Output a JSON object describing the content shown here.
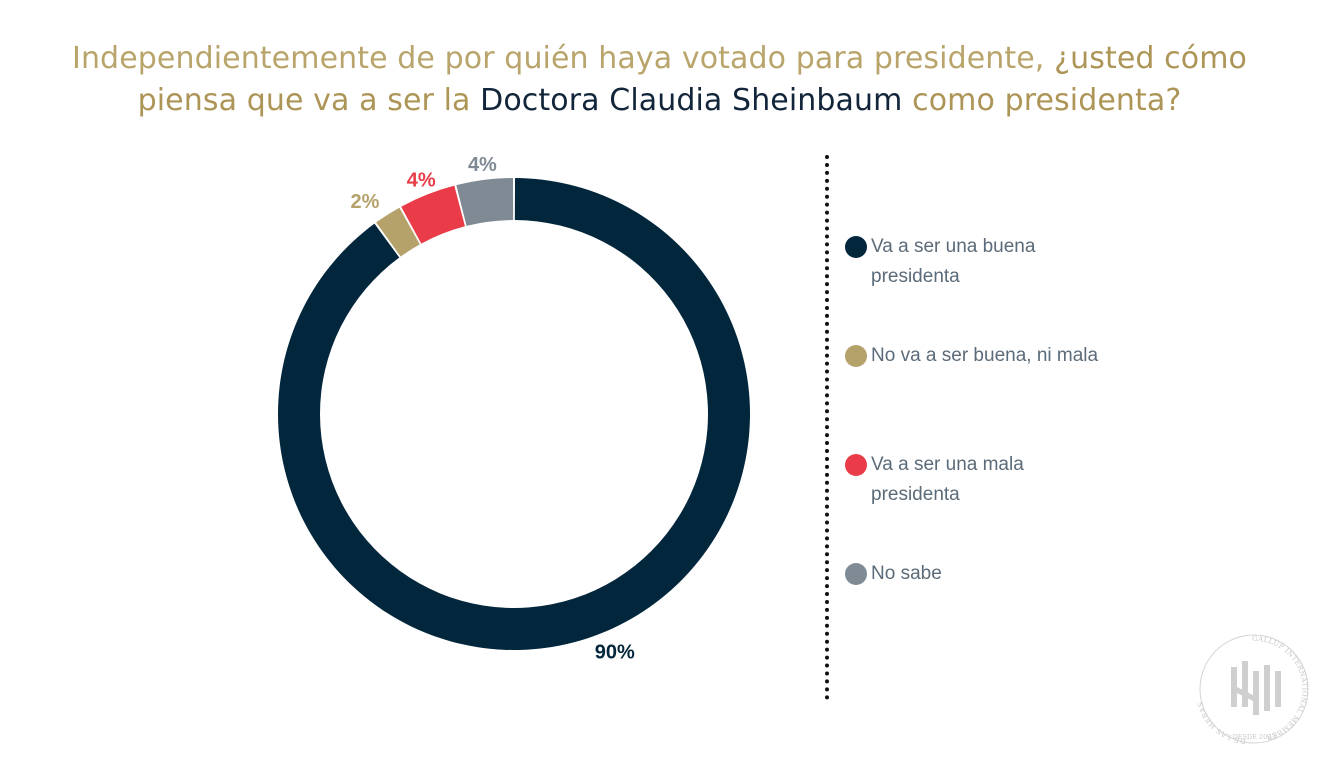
{
  "title": {
    "part1": "Independientemente de por quién haya votado para presidente, ",
    "part2": "¿usted cómo piensa que va a ser la ",
    "part3": "Doctora Claudia Sheinbaum",
    "part4": " como presidenta?"
  },
  "colors": {
    "buena": "#02273d",
    "ni_buena_ni_mala": "#b5a26a",
    "mala": "#ea3c48",
    "no_sabe": "#7f8a94"
  },
  "chart_data": {
    "type": "pie",
    "variant": "donut",
    "title": "",
    "categories": [
      "Va a ser una buena presidenta",
      "No va a ser buena, ni mala",
      "Va a ser una mala presidenta",
      "No sabe"
    ],
    "values": [
      90,
      2,
      4,
      4
    ],
    "value_labels": [
      "90%",
      "2%",
      "4%",
      "4%"
    ],
    "start": "top, clockwise from 12 o'clock",
    "legend_position": "right"
  },
  "legend": [
    {
      "label": "Va a ser una buena presidenta"
    },
    {
      "label": "No va a ser buena, ni mala"
    },
    {
      "label": "Va a ser una mala presidenta"
    },
    {
      "label": "No sabe"
    }
  ],
  "seal": {
    "text_left": "DE LAS HERAS",
    "text_right": "GALLUP INTERNATIONAL MEMBER",
    "text_bottom": "DESDE 2023"
  }
}
